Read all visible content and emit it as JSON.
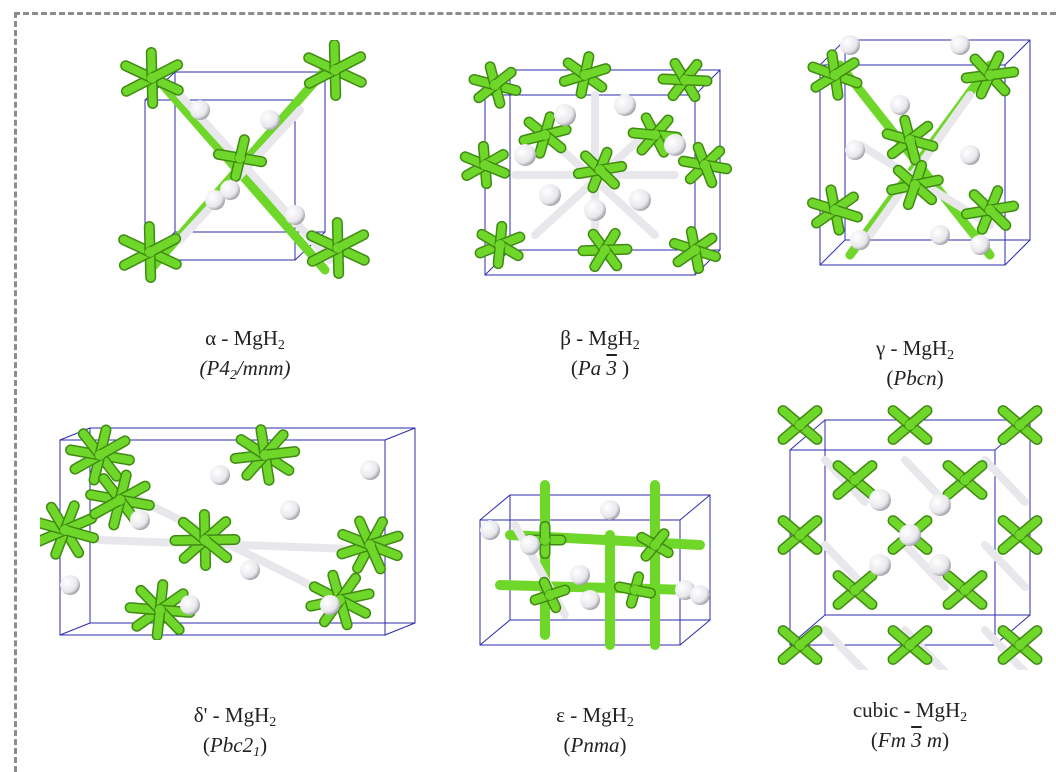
{
  "colors": {
    "mg": "#6fd62a",
    "mg_dark": "#3f8a12",
    "h": "#e8e8ec",
    "h_dark": "#9a9aa2",
    "cell_edge": "#2b2bb0",
    "frame": "#8c8c8c"
  },
  "structures": [
    {
      "id": "alpha",
      "prefix": "α - MgH",
      "sub": "2",
      "group_main": "P4",
      "group_sub": "2",
      "group_tail": "/mnm",
      "group_open": "(",
      "group_close": ")"
    },
    {
      "id": "beta",
      "prefix": "β - MgH",
      "sub": "2",
      "group_main": "Pa ",
      "group_bar": "3",
      "group_tail": " ",
      "group_open": "(",
      "group_close": ")"
    },
    {
      "id": "gamma",
      "prefix": "γ -  MgH",
      "sub": "2",
      "group_main": "Pbcn",
      "group_open": "(",
      "group_close": ")"
    },
    {
      "id": "delta",
      "prefix": "δ' - MgH",
      "sub": "2",
      "group_main": "Pbc2",
      "group_sub": "1",
      "group_open": "(",
      "group_close": ")"
    },
    {
      "id": "eps",
      "prefix": "ε - MgH",
      "sub": "2",
      "group_main": "Pnma",
      "group_open": "(",
      "group_close": ")"
    },
    {
      "id": "cubic",
      "prefix": "cubic - MgH",
      "sub": "2",
      "group_main": "Fm ",
      "group_bar": "3",
      "group_tail": " m",
      "group_open": "(",
      "group_close": ")"
    }
  ]
}
